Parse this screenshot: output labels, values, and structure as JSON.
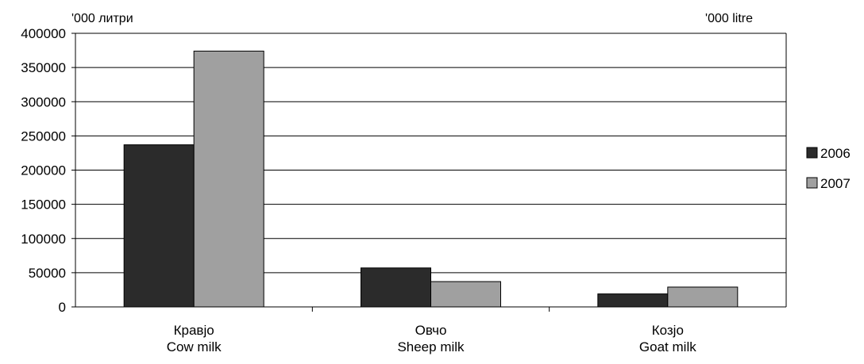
{
  "chart_data": {
    "type": "bar",
    "title": "",
    "unit_left": "'000 литри",
    "unit_right": "'000 litre",
    "categories": [
      {
        "line1": "Кравјо",
        "line2": "Cow milk"
      },
      {
        "line1": "Овчо",
        "line2": "Sheep milk"
      },
      {
        "line1": "Козјо",
        "line2": "Goat milk"
      }
    ],
    "series": [
      {
        "name": "2006",
        "color": "#2b2b2b",
        "values": [
          237000,
          57000,
          19000
        ]
      },
      {
        "name": "2007",
        "color": "#a0a0a0",
        "values": [
          374000,
          37000,
          29000
        ]
      }
    ],
    "ylim": [
      0,
      400000
    ],
    "yticks": [
      0,
      50000,
      100000,
      150000,
      200000,
      250000,
      300000,
      350000,
      400000
    ],
    "ytick_labels": [
      "0",
      "50000",
      "100000",
      "150000",
      "200000",
      "250000",
      "300000",
      "350000",
      "400000"
    ],
    "grid": true,
    "legend_position": "right"
  }
}
